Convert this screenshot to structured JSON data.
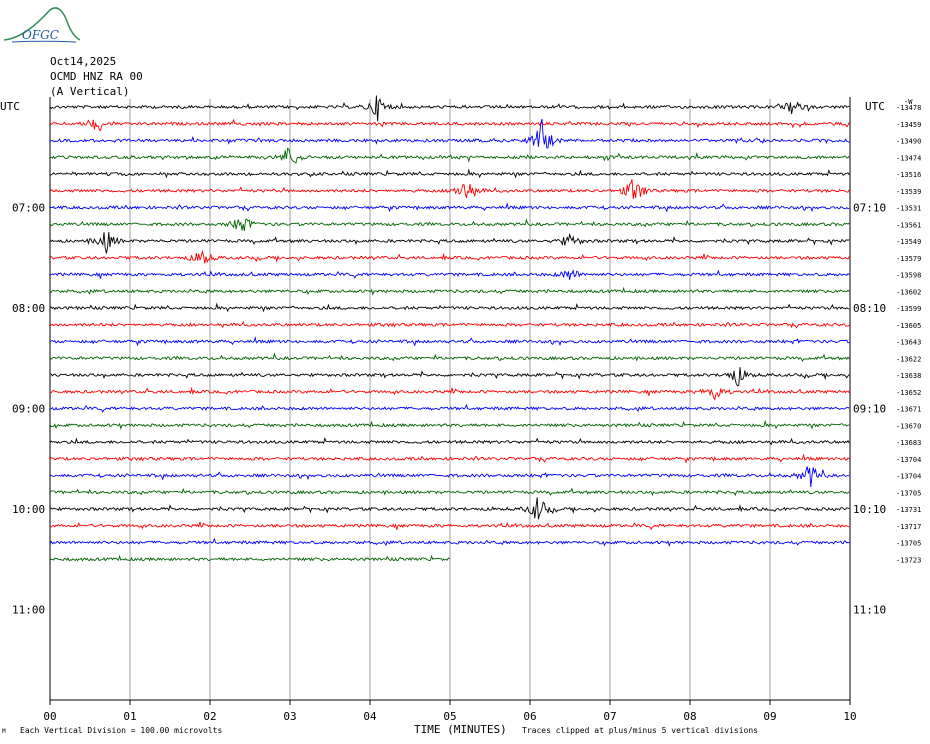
{
  "logo": {
    "text": "OFGC"
  },
  "header": {
    "date": "Oct14,2025",
    "station": "OCMD HNZ RA 00",
    "component": "(A Vertical)"
  },
  "timezone": {
    "left": "UTC",
    "right": "UTC"
  },
  "colors": {
    "cycle": [
      "#000000",
      "#ff0000",
      "#0000ff",
      "#006400"
    ],
    "grid": "#888888"
  },
  "chart_data": {
    "type": "line",
    "title": "",
    "xlabel": "TIME (MINUTES)",
    "ylabel": "",
    "x_ticks": [
      "00",
      "01",
      "02",
      "03",
      "04",
      "05",
      "06",
      "07",
      "08",
      "09",
      "10"
    ],
    "xlim": [
      0,
      10
    ],
    "rows_per_hour": 6,
    "left_time_labels": [
      "07:00",
      "08:00",
      "09:00",
      "10:00",
      "11:00"
    ],
    "right_time_labels": [
      "07:10",
      "08:10",
      "09:10",
      "10:10",
      "11:10"
    ],
    "right_offset_header": "-W",
    "trace_offsets": [
      "-13478",
      "-13459",
      "-13490",
      "-13474",
      "-13516",
      "-13539",
      "-13531",
      "-13561",
      "-13549",
      "-13579",
      "-13598",
      "-13602",
      "-13599",
      "-13605",
      "-13643",
      "-13622",
      "-13638",
      "-13652",
      "-13671",
      "-13670",
      "-13683",
      "-13704",
      "-13704",
      "-13705",
      "-13731",
      "-13717",
      "-13705",
      "-13723"
    ],
    "last_trace_end_minute": 5,
    "events": [
      {
        "trace": 0,
        "minute": 4.1,
        "amp": 1.0
      },
      {
        "trace": 0,
        "minute": 9.3,
        "amp": 0.6
      },
      {
        "trace": 1,
        "minute": 0.6,
        "amp": 0.6
      },
      {
        "trace": 2,
        "minute": 6.15,
        "amp": 1.6
      },
      {
        "trace": 3,
        "minute": 3.0,
        "amp": 1.0
      },
      {
        "trace": 5,
        "minute": 5.2,
        "amp": 1.0
      },
      {
        "trace": 5,
        "minute": 7.3,
        "amp": 1.1
      },
      {
        "trace": 7,
        "minute": 2.4,
        "amp": 0.8
      },
      {
        "trace": 8,
        "minute": 0.7,
        "amp": 0.9
      },
      {
        "trace": 8,
        "minute": 6.5,
        "amp": 0.6
      },
      {
        "trace": 9,
        "minute": 1.9,
        "amp": 0.7
      },
      {
        "trace": 10,
        "minute": 6.5,
        "amp": 0.5
      },
      {
        "trace": 16,
        "minute": 8.6,
        "amp": 0.8
      },
      {
        "trace": 17,
        "minute": 8.3,
        "amp": 0.8
      },
      {
        "trace": 22,
        "minute": 9.5,
        "amp": 0.9
      },
      {
        "trace": 24,
        "minute": 6.1,
        "amp": 1.0
      }
    ]
  },
  "footer": {
    "left_mark": "M",
    "scale_note": "Each Vertical Division = 100.00 microvolts",
    "clip_note": "Traces clipped at plus/minus 5 vertical divisions"
  }
}
